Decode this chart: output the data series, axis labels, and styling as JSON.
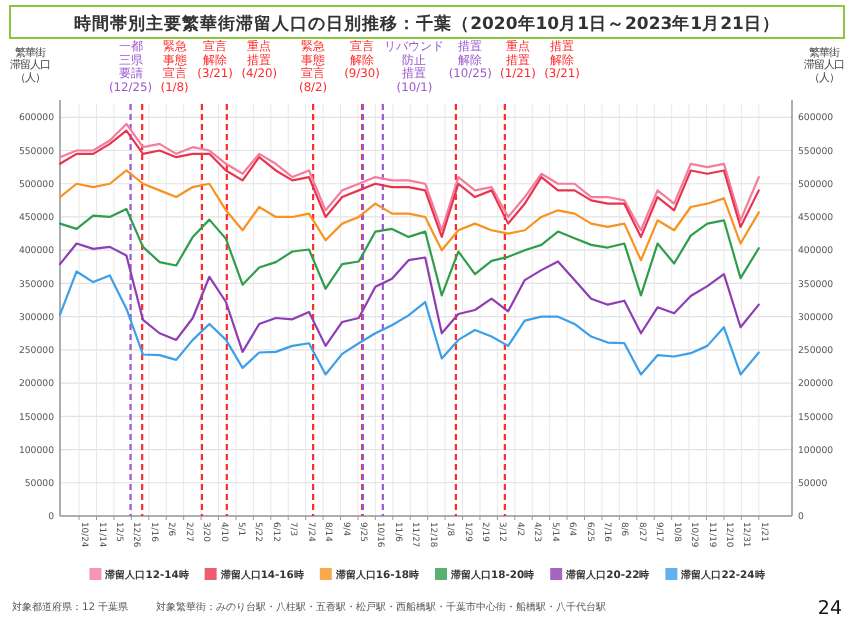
{
  "chart_data": {
    "type": "line",
    "title": "時間帯別主要繁華街滞留人口の日別推移：千葉（2020年10月1日～2023年1月21日）",
    "ylabel": "繁華街滞留人口（人）",
    "y2label": "繁華街滞留人口（人）",
    "x": [
      "2020-10-01",
      "2020-10-21",
      "2020-11-10",
      "2020-11-30",
      "2020-12-20",
      "2021-01-09",
      "2021-01-29",
      "2021-02-18",
      "2021-03-10",
      "2021-03-30",
      "2021-04-19",
      "2021-05-09",
      "2021-05-29",
      "2021-06-18",
      "2021-07-08",
      "2021-07-28",
      "2021-08-17",
      "2021-09-06",
      "2021-09-26",
      "2021-10-16",
      "2021-11-05",
      "2021-11-25",
      "2021-12-15",
      "2022-01-04",
      "2022-01-24",
      "2022-02-13",
      "2022-03-05",
      "2022-03-25",
      "2022-04-14",
      "2022-05-04",
      "2022-05-24",
      "2022-06-13",
      "2022-07-03",
      "2022-07-23",
      "2022-08-12",
      "2022-09-01",
      "2022-09-21",
      "2022-10-11",
      "2022-10-31",
      "2022-11-20",
      "2022-12-10",
      "2022-12-30",
      "2023-01-21"
    ],
    "series": [
      {
        "name": "滞留人口12-14時",
        "color": "#f47c9c",
        "values": [
          540000,
          550000,
          550000,
          565000,
          590000,
          555000,
          560000,
          545000,
          555000,
          550000,
          530000,
          515000,
          545000,
          530000,
          510000,
          520000,
          460000,
          490000,
          500000,
          510000,
          505000,
          505000,
          500000,
          430000,
          510000,
          490000,
          495000,
          450000,
          480000,
          515000,
          500000,
          500000,
          480000,
          480000,
          475000,
          430000,
          490000,
          470000,
          530000,
          525000,
          530000,
          445000,
          510000
        ]
      },
      {
        "name": "滞留人口14-16時",
        "color": "#e8354f",
        "values": [
          530000,
          545000,
          545000,
          560000,
          580000,
          545000,
          550000,
          540000,
          545000,
          545000,
          520000,
          505000,
          540000,
          520000,
          505000,
          510000,
          450000,
          480000,
          490000,
          500000,
          495000,
          495000,
          490000,
          420000,
          500000,
          480000,
          490000,
          440000,
          470000,
          510000,
          490000,
          490000,
          475000,
          470000,
          470000,
          420000,
          480000,
          460000,
          520000,
          515000,
          520000,
          435000,
          490000
        ]
      },
      {
        "name": "滞留人口16-18時",
        "color": "#f7931e",
        "values": [
          480000,
          500000,
          495000,
          500000,
          520000,
          500000,
          490000,
          480000,
          495000,
          500000,
          460000,
          430000,
          465000,
          450000,
          450000,
          455000,
          415000,
          440000,
          450000,
          470000,
          455000,
          455000,
          450000,
          400000,
          430000,
          440000,
          430000,
          425000,
          430000,
          450000,
          460000,
          455000,
          440000,
          435000,
          440000,
          385000,
          445000,
          430000,
          465000,
          470000,
          478000,
          410000,
          457000
        ]
      },
      {
        "name": "滞留人口18-20時",
        "color": "#2f9e4c",
        "values": [
          440000,
          432000,
          452000,
          450000,
          462000,
          405000,
          382000,
          377000,
          420000,
          446000,
          417000,
          348000,
          374000,
          382000,
          398000,
          401000,
          342000,
          379000,
          383000,
          428000,
          432000,
          420000,
          428000,
          332000,
          398000,
          364000,
          384000,
          390000,
          400000,
          408000,
          428000,
          418000,
          408000,
          404000,
          410000,
          332000,
          410000,
          380000,
          422000,
          440000,
          445000,
          358000,
          403000
        ]
      },
      {
        "name": "滞留人口20-22時",
        "color": "#8e3db3",
        "values": [
          379000,
          410000,
          402000,
          405000,
          392000,
          295000,
          275000,
          265000,
          298000,
          360000,
          322000,
          247000,
          289000,
          298000,
          296000,
          307000,
          256000,
          292000,
          298000,
          345000,
          357000,
          385000,
          389000,
          275000,
          304000,
          310000,
          327000,
          308000,
          355000,
          370000,
          383000,
          355000,
          327000,
          318000,
          324000,
          275000,
          314000,
          305000,
          331000,
          346000,
          364000,
          284000,
          318000
        ]
      },
      {
        "name": "滞留人口22-24時",
        "color": "#3d9fe8",
        "values": [
          303000,
          368000,
          352000,
          362000,
          312000,
          243000,
          242000,
          235000,
          265000,
          289000,
          265000,
          223000,
          246000,
          247000,
          256000,
          260000,
          213000,
          244000,
          260000,
          275000,
          287000,
          302000,
          322000,
          237000,
          265000,
          280000,
          270000,
          256000,
          294000,
          300000,
          300000,
          289000,
          270000,
          261000,
          260000,
          213000,
          242000,
          240000,
          245000,
          256000,
          284000,
          213000,
          246000
        ]
      }
    ],
    "xlim": [
      "2020-10-01",
      "2023-03-02"
    ],
    "xticks": [
      {
        "value": "2020-10-24",
        "label": "10/24"
      },
      {
        "value": "2020-11-14",
        "label": "11/14"
      },
      {
        "value": "2020-12-05",
        "label": "12/5"
      },
      {
        "value": "2020-12-26",
        "label": "12/26"
      },
      {
        "value": "2021-01-16",
        "label": "1/16"
      },
      {
        "value": "2021-02-06",
        "label": "2/6"
      },
      {
        "value": "2021-02-27",
        "label": "2/27"
      },
      {
        "value": "2021-03-20",
        "label": "3/20"
      },
      {
        "value": "2021-04-10",
        "label": "4/10"
      },
      {
        "value": "2021-05-01",
        "label": "5/1"
      },
      {
        "value": "2021-05-22",
        "label": "5/22"
      },
      {
        "value": "2021-06-12",
        "label": "6/12"
      },
      {
        "value": "2021-07-03",
        "label": "7/3"
      },
      {
        "value": "2021-07-24",
        "label": "7/24"
      },
      {
        "value": "2021-08-14",
        "label": "8/14"
      },
      {
        "value": "2021-09-04",
        "label": "9/4"
      },
      {
        "value": "2021-09-25",
        "label": "9/25"
      },
      {
        "value": "2021-10-16",
        "label": "10/16"
      },
      {
        "value": "2021-11-06",
        "label": "11/6"
      },
      {
        "value": "2021-11-27",
        "label": "11/27"
      },
      {
        "value": "2021-12-18",
        "label": "12/18"
      },
      {
        "value": "2022-01-08",
        "label": "1/8"
      },
      {
        "value": "2022-01-29",
        "label": "1/29"
      },
      {
        "value": "2022-02-19",
        "label": "2/19"
      },
      {
        "value": "2022-03-12",
        "label": "3/12"
      },
      {
        "value": "2022-04-02",
        "label": "4/2"
      },
      {
        "value": "2022-04-23",
        "label": "4/23"
      },
      {
        "value": "2022-05-14",
        "label": "5/14"
      },
      {
        "value": "2022-06-04",
        "label": "6/4"
      },
      {
        "value": "2022-06-25",
        "label": "6/25"
      },
      {
        "value": "2022-07-16",
        "label": "7/16"
      },
      {
        "value": "2022-08-06",
        "label": "8/6"
      },
      {
        "value": "2022-08-27",
        "label": "8/27"
      },
      {
        "value": "2022-09-17",
        "label": "9/17"
      },
      {
        "value": "2022-10-08",
        "label": "10/8"
      },
      {
        "value": "2022-10-29",
        "label": "10/29"
      },
      {
        "value": "2022-11-19",
        "label": "11/19"
      },
      {
        "value": "2022-12-10",
        "label": "12/10"
      },
      {
        "value": "2022-12-31",
        "label": "12/31"
      },
      {
        "value": "2023-01-21",
        "label": "1/21"
      }
    ],
    "ylim": [
      0,
      620000
    ],
    "yticks": [
      0,
      50000,
      100000,
      150000,
      200000,
      250000,
      300000,
      350000,
      400000,
      450000,
      500000,
      550000,
      600000
    ],
    "y2lim": [
      0,
      620000
    ],
    "y2ticks": [
      0,
      50000,
      100000,
      150000,
      200000,
      250000,
      300000,
      350000,
      400000,
      450000,
      500000,
      550000,
      600000
    ],
    "grid": true,
    "legend": "bottom",
    "ref_lines": [
      {
        "axis": "x",
        "value": "2020-12-25",
        "label": "一都三県要請(12/25)",
        "color": "#9b59d0",
        "line_style": "dashed"
      },
      {
        "axis": "x",
        "value": "2021-01-08",
        "label": "緊急事態宣言(1/8)",
        "color": "#ff2b2b",
        "line_style": "dashed"
      },
      {
        "axis": "x",
        "value": "2021-03-21",
        "label": "宣言解除(3/21)",
        "color": "#ff2b2b",
        "line_style": "dashed"
      },
      {
        "axis": "x",
        "value": "2021-04-20",
        "label": "重点措置(4/20)",
        "color": "#ff2b2b",
        "line_style": "dashed"
      },
      {
        "axis": "x",
        "value": "2021-08-02",
        "label": "緊急事態宣言(8/2)",
        "color": "#ff2b2b",
        "line_style": "dashed"
      },
      {
        "axis": "x",
        "value": "2021-09-30",
        "label": "宣言解除(9/30)",
        "color": "#ff2b2b",
        "line_style": "dashed"
      },
      {
        "axis": "x",
        "value": "2021-10-01",
        "label": "リバウンド防止措置(10/1)",
        "color": "#9b59d0",
        "line_style": "dashed"
      },
      {
        "axis": "x",
        "value": "2021-10-25",
        "label": "措置解除(10/25)",
        "color": "#9b59d0",
        "line_style": "dashed"
      },
      {
        "axis": "x",
        "value": "2022-01-21",
        "label": "重点措置(1/21)",
        "color": "#ff2b2b",
        "line_style": "dashed"
      },
      {
        "axis": "x",
        "value": "2022-03-21",
        "label": "措置解除(3/21)",
        "color": "#ff2b2b",
        "line_style": "dashed"
      }
    ],
    "annotations": [
      "対象都道府県：12 千葉県",
      "対象繁華街：みのり台駅・八柱駅・五香駅・松戸駅・西船橋駅・千葉市中心街・船橋駅・八千代台駅",
      "24"
    ]
  }
}
